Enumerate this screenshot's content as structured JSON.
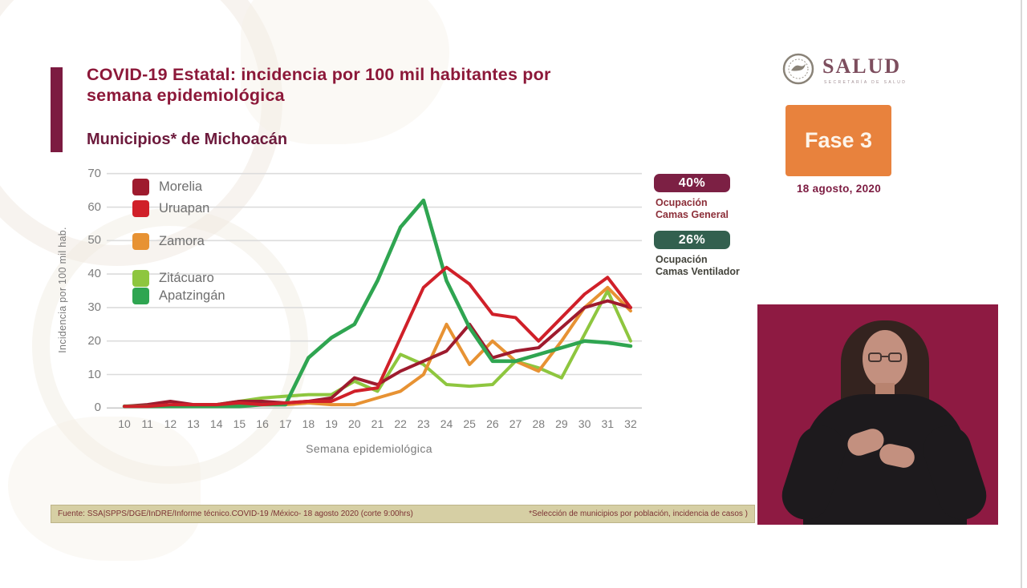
{
  "header": {
    "title_line1": "COVID-19 Estatal: incidencia por 100 mil habitantes por",
    "title_line2": "semana epidemiológica",
    "subtitle": "Municipios* de Michoacán"
  },
  "logo": {
    "name": "SALUD",
    "sub": "SECRETARÍA DE SALUD"
  },
  "phase": {
    "label": "Fase 3",
    "date": "18 agosto, 2020",
    "color": "#e8823d"
  },
  "badges": [
    {
      "value": "40%",
      "caption_line1": "Ocupación",
      "caption_line2": "Camas General",
      "bg": "#7c2044",
      "caption_color": "#8c2f39"
    },
    {
      "value": "26%",
      "caption_line1": "Ocupación",
      "caption_line2": "Camas Ventilador",
      "bg": "#33604f",
      "caption_color": "#44443c"
    }
  ],
  "chart_data": {
    "type": "line",
    "title": "Municipios* de Michoacán",
    "xlabel": "Semana epidemiológica",
    "ylabel": "Incidencia por 100 mil hab.",
    "x": [
      10,
      11,
      12,
      13,
      14,
      15,
      16,
      17,
      18,
      19,
      20,
      21,
      22,
      23,
      24,
      25,
      26,
      27,
      28,
      29,
      30,
      31,
      32
    ],
    "ylim": [
      0,
      70
    ],
    "yticks": [
      0,
      10,
      20,
      30,
      40,
      50,
      60,
      70
    ],
    "grid": true,
    "legend_position": "inside-top-left",
    "series": [
      {
        "name": "Zitácuaro",
        "color": "#8ec63f",
        "values": [
          0.5,
          0.5,
          0.5,
          1,
          1,
          2,
          3,
          3.5,
          4,
          4,
          8,
          5,
          16,
          13,
          7,
          6.5,
          7,
          14,
          12,
          9,
          22,
          35,
          20
        ]
      },
      {
        "name": "Zamora",
        "color": "#e79233",
        "values": [
          0.5,
          0.5,
          0.5,
          0.5,
          0.5,
          1,
          1,
          1,
          1.5,
          1,
          1,
          3,
          5,
          10,
          25,
          13,
          20,
          14,
          11,
          20,
          30,
          36,
          29
        ]
      },
      {
        "name": "Morelia",
        "color": "#9e1b2e",
        "values": [
          0.5,
          1,
          2,
          1,
          1,
          2,
          2,
          1.5,
          2,
          3,
          9,
          7,
          11,
          14,
          17,
          25,
          15,
          17,
          18,
          24,
          30,
          32,
          30
        ]
      },
      {
        "name": "Apatzingán",
        "color": "#2fa551",
        "values": [
          0.5,
          0.5,
          0.5,
          0.5,
          0.5,
          0.5,
          1,
          1,
          15,
          21,
          25,
          38,
          54,
          62,
          38,
          24,
          14,
          14,
          16,
          18,
          20,
          19.5,
          18.5
        ]
      },
      {
        "name": "Uruapan",
        "color": "#d02029",
        "values": [
          0.5,
          0.5,
          1,
          1,
          1,
          1.5,
          1,
          1.5,
          2,
          2,
          5,
          6,
          21,
          36,
          42,
          37,
          28,
          27,
          20,
          27,
          34,
          39,
          30
        ]
      }
    ],
    "legend_order": [
      "Morelia",
      "Uruapan",
      "Zamora",
      "Zitácuaro",
      "Apatzingán"
    ]
  },
  "footer": {
    "source": "Fuente: SSA|SPPS/DGE/InDRE/Informe técnico.COVID-19 /México- 18 agosto 2020 (corte 9:00hrs)",
    "note": "*Selección de municipios por población, incidencia de casos )"
  }
}
